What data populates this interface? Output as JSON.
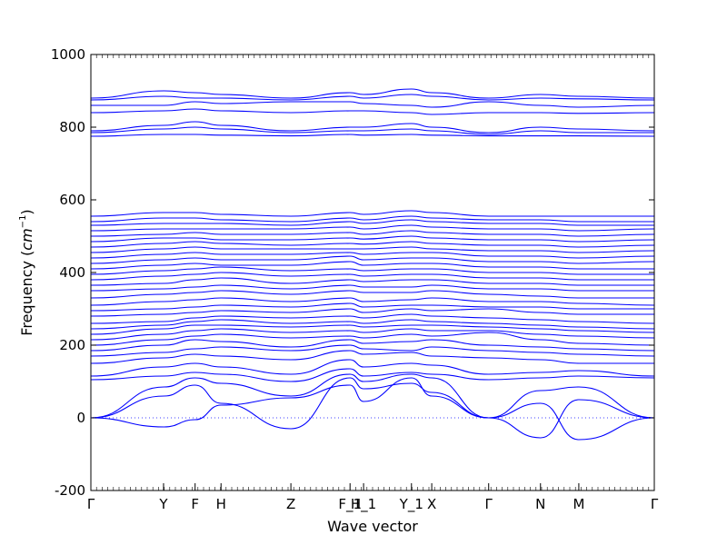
{
  "chart_data": {
    "type": "line",
    "title": "",
    "xlabel": "Wave vector",
    "ylabel": "Frequency (cm⁻¹)",
    "ylabel_main": "Frequency (",
    "ylabel_unit": "cm",
    "ylabel_exp": "−1",
    "ylabel_close": ")",
    "xlim": [
      0,
      1
    ],
    "ylim": [
      -200,
      1000
    ],
    "yticks": [
      -200,
      0,
      200,
      400,
      600,
      800,
      1000
    ],
    "grid": false,
    "zero_line": {
      "y": 0,
      "style": "dotted",
      "color": "#0000ff"
    },
    "line_color": "#0000ff",
    "high_symmetry_points": [
      {
        "label": "Γ",
        "x": 0.0
      },
      {
        "label": "Y",
        "x": 0.129
      },
      {
        "label": "F",
        "x": 0.185
      },
      {
        "label": "H",
        "x": 0.231
      },
      {
        "label": "Z",
        "x": 0.355
      },
      {
        "label": "F_1",
        "x": 0.46
      },
      {
        "label": "H_1",
        "x": 0.484
      },
      {
        "label": "Y_1",
        "x": 0.569
      },
      {
        "label": "X",
        "x": 0.605
      },
      {
        "label": "Γ",
        "x": 0.706
      },
      {
        "label": "N",
        "x": 0.798
      },
      {
        "label": "M",
        "x": 0.866
      },
      {
        "label": "Γ",
        "x": 1.0
      }
    ],
    "series": [
      {
        "x": [
          0,
          0.13,
          0.185,
          0.231,
          0.355,
          0.46,
          0.484,
          0.569,
          0.605,
          0.706,
          0.798,
          0.866,
          1
        ],
        "y": [
          0,
          -25,
          -5,
          35,
          55,
          90,
          45,
          110,
          60,
          0,
          -55,
          50,
          0
        ]
      },
      {
        "x": [
          0,
          0.13,
          0.185,
          0.231,
          0.355,
          0.46,
          0.484,
          0.569,
          0.605,
          0.706,
          0.798,
          0.866,
          1
        ],
        "y": [
          0,
          60,
          90,
          40,
          -30,
          110,
          80,
          95,
          70,
          0,
          40,
          -60,
          0
        ]
      },
      {
        "x": [
          0,
          0.13,
          0.185,
          0.231,
          0.355,
          0.46,
          0.484,
          0.569,
          0.605,
          0.706,
          0.798,
          0.866,
          1
        ],
        "y": [
          0,
          85,
          110,
          95,
          60,
          120,
          100,
          120,
          110,
          0,
          75,
          85,
          0
        ]
      },
      {
        "x": [
          0,
          0.13,
          0.185,
          0.231,
          0.355,
          0.46,
          0.484,
          0.569,
          0.605,
          0.706,
          0.798,
          0.866,
          1
        ],
        "y": [
          105,
          115,
          125,
          120,
          100,
          135,
          115,
          125,
          120,
          105,
          110,
          115,
          110
        ]
      },
      {
        "x": [
          0,
          0.13,
          0.185,
          0.231,
          0.355,
          0.46,
          0.484,
          0.569,
          0.605,
          0.706,
          0.798,
          0.866,
          1
        ],
        "y": [
          115,
          140,
          150,
          140,
          120,
          160,
          140,
          150,
          145,
          120,
          125,
          130,
          115
        ]
      },
      {
        "x": [
          0,
          0.13,
          0.185,
          0.231,
          0.355,
          0.46,
          0.484,
          0.569,
          0.605,
          0.706,
          0.798,
          0.866,
          1
        ],
        "y": [
          150,
          165,
          175,
          170,
          160,
          185,
          175,
          180,
          170,
          165,
          160,
          150,
          150
        ]
      },
      {
        "x": [
          0,
          0.13,
          0.185,
          0.231,
          0.355,
          0.46,
          0.484,
          0.569,
          0.605,
          0.706,
          0.798,
          0.866,
          1
        ],
        "y": [
          170,
          180,
          190,
          195,
          185,
          200,
          190,
          185,
          195,
          185,
          180,
          175,
          170
        ]
      },
      {
        "x": [
          0,
          0.13,
          0.185,
          0.231,
          0.355,
          0.46,
          0.484,
          0.569,
          0.605,
          0.706,
          0.798,
          0.866,
          1
        ],
        "y": [
          185,
          200,
          215,
          210,
          195,
          215,
          205,
          210,
          215,
          200,
          195,
          190,
          185
        ]
      },
      {
        "x": [
          0,
          0.13,
          0.185,
          0.231,
          0.355,
          0.46,
          0.484,
          0.569,
          0.605,
          0.706,
          0.798,
          0.866,
          1
        ],
        "y": [
          200,
          215,
          225,
          230,
          220,
          225,
          220,
          230,
          225,
          235,
          215,
          205,
          200
        ]
      },
      {
        "x": [
          0,
          0.13,
          0.185,
          0.231,
          0.355,
          0.46,
          0.484,
          0.569,
          0.605,
          0.706,
          0.798,
          0.866,
          1
        ],
        "y": [
          215,
          230,
          240,
          245,
          235,
          240,
          235,
          245,
          240,
          240,
          230,
          225,
          220
        ]
      },
      {
        "x": [
          0,
          0.13,
          0.185,
          0.231,
          0.355,
          0.46,
          0.484,
          0.569,
          0.605,
          0.706,
          0.798,
          0.866,
          1
        ],
        "y": [
          230,
          245,
          255,
          255,
          250,
          255,
          250,
          255,
          255,
          250,
          245,
          240,
          235
        ]
      },
      {
        "x": [
          0,
          0.13,
          0.185,
          0.231,
          0.355,
          0.46,
          0.484,
          0.569,
          0.605,
          0.706,
          0.798,
          0.866,
          1
        ],
        "y": [
          245,
          255,
          265,
          270,
          260,
          265,
          260,
          270,
          265,
          260,
          255,
          250,
          245
        ]
      },
      {
        "x": [
          0,
          0.13,
          0.185,
          0.231,
          0.355,
          0.46,
          0.484,
          0.569,
          0.605,
          0.706,
          0.798,
          0.866,
          1
        ],
        "y": [
          260,
          265,
          275,
          280,
          275,
          280,
          275,
          285,
          280,
          275,
          270,
          265,
          260
        ]
      },
      {
        "x": [
          0,
          0.13,
          0.185,
          0.231,
          0.355,
          0.46,
          0.484,
          0.569,
          0.605,
          0.706,
          0.798,
          0.866,
          1
        ],
        "y": [
          280,
          285,
          290,
          295,
          290,
          300,
          290,
          300,
          295,
          300,
          290,
          285,
          285
        ]
      },
      {
        "x": [
          0,
          0.13,
          0.185,
          0.231,
          0.355,
          0.46,
          0.484,
          0.569,
          0.605,
          0.706,
          0.798,
          0.866,
          1
        ],
        "y": [
          295,
          300,
          305,
          310,
          305,
          315,
          305,
          310,
          310,
          305,
          305,
          300,
          300
        ]
      },
      {
        "x": [
          0,
          0.13,
          0.185,
          0.231,
          0.355,
          0.46,
          0.484,
          0.569,
          0.605,
          0.706,
          0.798,
          0.866,
          1
        ],
        "y": [
          310,
          320,
          325,
          330,
          320,
          330,
          320,
          325,
          330,
          320,
          320,
          315,
          310
        ]
      },
      {
        "x": [
          0,
          0.13,
          0.185,
          0.231,
          0.355,
          0.46,
          0.484,
          0.569,
          0.605,
          0.706,
          0.798,
          0.866,
          1
        ],
        "y": [
          330,
          340,
          345,
          350,
          340,
          350,
          345,
          345,
          350,
          340,
          335,
          330,
          330
        ]
      },
      {
        "x": [
          0,
          0.13,
          0.185,
          0.231,
          0.355,
          0.46,
          0.484,
          0.569,
          0.605,
          0.706,
          0.798,
          0.866,
          1
        ],
        "y": [
          350,
          355,
          360,
          365,
          355,
          365,
          360,
          360,
          365,
          355,
          355,
          350,
          350
        ]
      },
      {
        "x": [
          0,
          0.13,
          0.185,
          0.231,
          0.355,
          0.46,
          0.484,
          0.569,
          0.605,
          0.706,
          0.798,
          0.866,
          1
        ],
        "y": [
          365,
          370,
          380,
          385,
          370,
          380,
          375,
          380,
          380,
          370,
          370,
          365,
          365
        ]
      },
      {
        "x": [
          0,
          0.13,
          0.185,
          0.231,
          0.355,
          0.46,
          0.484,
          0.569,
          0.605,
          0.706,
          0.798,
          0.866,
          1
        ],
        "y": [
          380,
          390,
          395,
          400,
          390,
          395,
          390,
          395,
          395,
          385,
          385,
          380,
          380
        ]
      },
      {
        "x": [
          0,
          0.13,
          0.185,
          0.231,
          0.355,
          0.46,
          0.484,
          0.569,
          0.605,
          0.706,
          0.798,
          0.866,
          1
        ],
        "y": [
          395,
          405,
          410,
          415,
          405,
          410,
          405,
          410,
          410,
          400,
          400,
          395,
          395
        ]
      },
      {
        "x": [
          0,
          0.13,
          0.185,
          0.231,
          0.355,
          0.46,
          0.484,
          0.569,
          0.605,
          0.706,
          0.798,
          0.866,
          1
        ],
        "y": [
          410,
          420,
          425,
          420,
          420,
          430,
          420,
          425,
          425,
          415,
          415,
          410,
          410
        ]
      },
      {
        "x": [
          0,
          0.13,
          0.185,
          0.231,
          0.355,
          0.46,
          0.484,
          0.569,
          0.605,
          0.706,
          0.798,
          0.866,
          1
        ],
        "y": [
          425,
          435,
          440,
          435,
          435,
          445,
          435,
          440,
          440,
          430,
          430,
          425,
          430
        ]
      },
      {
        "x": [
          0,
          0.13,
          0.185,
          0.231,
          0.355,
          0.46,
          0.484,
          0.569,
          0.605,
          0.706,
          0.798,
          0.866,
          1
        ],
        "y": [
          440,
          450,
          455,
          450,
          450,
          455,
          450,
          455,
          455,
          445,
          445,
          440,
          445
        ]
      },
      {
        "x": [
          0,
          0.13,
          0.185,
          0.231,
          0.355,
          0.46,
          0.484,
          0.569,
          0.605,
          0.706,
          0.798,
          0.866,
          1
        ],
        "y": [
          455,
          465,
          470,
          465,
          465,
          465,
          465,
          470,
          465,
          460,
          460,
          455,
          460
        ]
      },
      {
        "x": [
          0,
          0.13,
          0.185,
          0.231,
          0.355,
          0.46,
          0.484,
          0.569,
          0.605,
          0.706,
          0.798,
          0.866,
          1
        ],
        "y": [
          470,
          480,
          485,
          480,
          475,
          480,
          478,
          485,
          480,
          475,
          475,
          470,
          475
        ]
      },
      {
        "x": [
          0,
          0.13,
          0.185,
          0.231,
          0.355,
          0.46,
          0.484,
          0.569,
          0.605,
          0.706,
          0.798,
          0.866,
          1
        ],
        "y": [
          485,
          495,
          495,
          490,
          490,
          495,
          492,
          500,
          495,
          490,
          490,
          485,
          490
        ]
      },
      {
        "x": [
          0,
          0.13,
          0.185,
          0.231,
          0.355,
          0.46,
          0.484,
          0.569,
          0.605,
          0.706,
          0.798,
          0.866,
          1
        ],
        "y": [
          500,
          505,
          510,
          505,
          505,
          510,
          505,
          515,
          510,
          505,
          505,
          500,
          505
        ]
      },
      {
        "x": [
          0,
          0.13,
          0.185,
          0.231,
          0.355,
          0.46,
          0.484,
          0.569,
          0.605,
          0.706,
          0.798,
          0.866,
          1
        ],
        "y": [
          515,
          520,
          520,
          520,
          520,
          525,
          520,
          530,
          525,
          520,
          520,
          515,
          520
        ]
      },
      {
        "x": [
          0,
          0.13,
          0.185,
          0.231,
          0.355,
          0.46,
          0.484,
          0.569,
          0.605,
          0.706,
          0.798,
          0.866,
          1
        ],
        "y": [
          530,
          535,
          535,
          535,
          530,
          540,
          535,
          545,
          540,
          535,
          535,
          530,
          530
        ]
      },
      {
        "x": [
          0,
          0.13,
          0.185,
          0.231,
          0.355,
          0.46,
          0.484,
          0.569,
          0.605,
          0.706,
          0.798,
          0.866,
          1
        ],
        "y": [
          540,
          550,
          550,
          545,
          540,
          550,
          545,
          555,
          550,
          545,
          545,
          540,
          540
        ]
      },
      {
        "x": [
          0,
          0.13,
          0.185,
          0.231,
          0.355,
          0.46,
          0.484,
          0.569,
          0.605,
          0.706,
          0.798,
          0.866,
          1
        ],
        "y": [
          555,
          565,
          565,
          560,
          555,
          565,
          560,
          570,
          565,
          555,
          555,
          555,
          555
        ]
      },
      {
        "x": [
          0,
          0.13,
          0.185,
          0.231,
          0.355,
          0.46,
          0.484,
          0.569,
          0.605,
          0.706,
          0.798,
          0.866,
          1
        ],
        "y": [
          775,
          780,
          780,
          778,
          776,
          780,
          778,
          780,
          778,
          776,
          776,
          776,
          775
        ]
      },
      {
        "x": [
          0,
          0.13,
          0.185,
          0.231,
          0.355,
          0.46,
          0.484,
          0.569,
          0.605,
          0.706,
          0.798,
          0.866,
          1
        ],
        "y": [
          785,
          795,
          800,
          795,
          785,
          790,
          790,
          795,
          790,
          780,
          790,
          785,
          785
        ]
      },
      {
        "x": [
          0,
          0.13,
          0.185,
          0.231,
          0.355,
          0.46,
          0.484,
          0.569,
          0.605,
          0.706,
          0.798,
          0.866,
          1
        ],
        "y": [
          790,
          805,
          815,
          805,
          790,
          800,
          800,
          810,
          800,
          785,
          800,
          795,
          790
        ]
      },
      {
        "x": [
          0,
          0.13,
          0.185,
          0.231,
          0.355,
          0.46,
          0.484,
          0.569,
          0.605,
          0.706,
          0.798,
          0.866,
          1
        ],
        "y": [
          840,
          845,
          850,
          845,
          840,
          845,
          845,
          840,
          835,
          840,
          840,
          838,
          840
        ]
      },
      {
        "x": [
          0,
          0.13,
          0.185,
          0.231,
          0.355,
          0.46,
          0.484,
          0.569,
          0.605,
          0.706,
          0.798,
          0.866,
          1
        ],
        "y": [
          860,
          860,
          870,
          865,
          870,
          870,
          865,
          860,
          855,
          870,
          860,
          855,
          860
        ]
      },
      {
        "x": [
          0,
          0.13,
          0.185,
          0.231,
          0.355,
          0.46,
          0.484,
          0.569,
          0.605,
          0.706,
          0.798,
          0.866,
          1
        ],
        "y": [
          875,
          885,
          880,
          880,
          875,
          885,
          880,
          890,
          885,
          875,
          880,
          878,
          875
        ]
      },
      {
        "x": [
          0,
          0.13,
          0.185,
          0.231,
          0.355,
          0.46,
          0.484,
          0.569,
          0.605,
          0.706,
          0.798,
          0.866,
          1
        ],
        "y": [
          880,
          900,
          895,
          890,
          880,
          895,
          890,
          905,
          895,
          880,
          890,
          885,
          880
        ]
      }
    ]
  }
}
